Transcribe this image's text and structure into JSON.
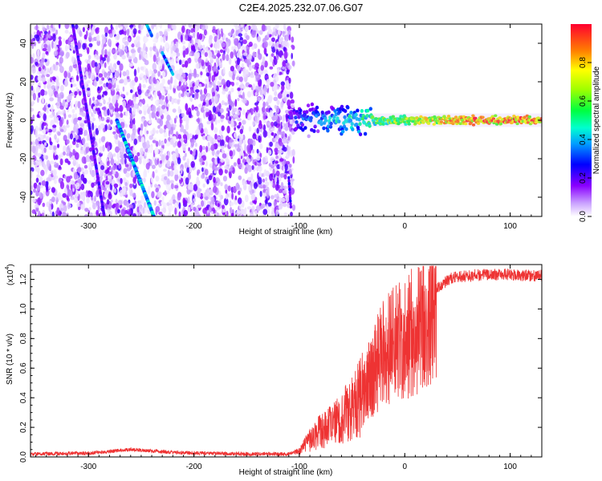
{
  "title": "C2E4.2025.232.07.06.G07",
  "chart_data": [
    {
      "type": "heatmap",
      "title": "C2E4.2025.232.07.06.G07",
      "xlabel": "Height of straight line (km)",
      "ylabel": "Frequency (Hz)",
      "xlim": [
        -355,
        130
      ],
      "ylim": [
        -50,
        50
      ],
      "x_ticks": [
        -300,
        -200,
        -100,
        0,
        100
      ],
      "y_ticks": [
        -40,
        -20,
        0,
        20,
        40
      ],
      "colorbar": {
        "label": "Normalized spectral amplitude",
        "range": [
          0,
          1
        ],
        "ticks": [
          "0.0",
          "0.2",
          "0.4",
          "0.6",
          "0.8"
        ],
        "colormap": [
          "#ffffff",
          "#8a00ff",
          "#0000ff",
          "#00e5ff",
          "#00ff40",
          "#ffff00",
          "#ff8000",
          "#ff0000"
        ]
      },
      "features": {
        "noise_region_x": [
          -355,
          -105
        ],
        "carrier_line": {
          "freq": 0,
          "x_start": -110,
          "x_end": 130,
          "amplitude_start": 0.3,
          "amplitude_end": 0.85
        },
        "streak_1": {
          "x_start": -273,
          "f_start": 0,
          "x_end": -238,
          "f_end": -50,
          "amplitude": 0.4
        },
        "streak_2": {
          "x_start": -315,
          "f_start": 50,
          "x_end": -285,
          "f_end": -50,
          "amplitude": 0.2
        }
      }
    },
    {
      "type": "line",
      "xlabel": "Height of straight line (km)",
      "ylabel": "SNR (10 * v/v)",
      "multiplier_label": "(x10",
      "multiplier_exp": "4",
      "xlim": [
        -355,
        130
      ],
      "ylim": [
        0,
        1.3
      ],
      "x_ticks": [
        -300,
        -200,
        -100,
        0,
        100
      ],
      "y_ticks": [
        0.0,
        0.2,
        0.4,
        0.6,
        0.8,
        1.0,
        1.2
      ],
      "color": "#ee3333",
      "series_envelope": [
        {
          "x": -355,
          "y": 0.02
        },
        {
          "x": -300,
          "y": 0.025
        },
        {
          "x": -260,
          "y": 0.05
        },
        {
          "x": -220,
          "y": 0.03
        },
        {
          "x": -150,
          "y": 0.02
        },
        {
          "x": -110,
          "y": 0.02
        },
        {
          "x": -100,
          "y": 0.04
        },
        {
          "x": -90,
          "y": 0.12
        },
        {
          "x": -80,
          "y": 0.2
        },
        {
          "x": -70,
          "y": 0.22
        },
        {
          "x": -60,
          "y": 0.28
        },
        {
          "x": -50,
          "y": 0.35
        },
        {
          "x": -40,
          "y": 0.45
        },
        {
          "x": -30,
          "y": 0.6
        },
        {
          "x": -20,
          "y": 0.75
        },
        {
          "x": -10,
          "y": 0.8
        },
        {
          "x": 0,
          "y": 0.85
        },
        {
          "x": 10,
          "y": 0.9
        },
        {
          "x": 20,
          "y": 1.0
        },
        {
          "x": 30,
          "y": 1.15
        },
        {
          "x": 45,
          "y": 1.22
        },
        {
          "x": 70,
          "y": 1.24
        },
        {
          "x": 100,
          "y": 1.24
        },
        {
          "x": 130,
          "y": 1.23
        }
      ]
    }
  ]
}
